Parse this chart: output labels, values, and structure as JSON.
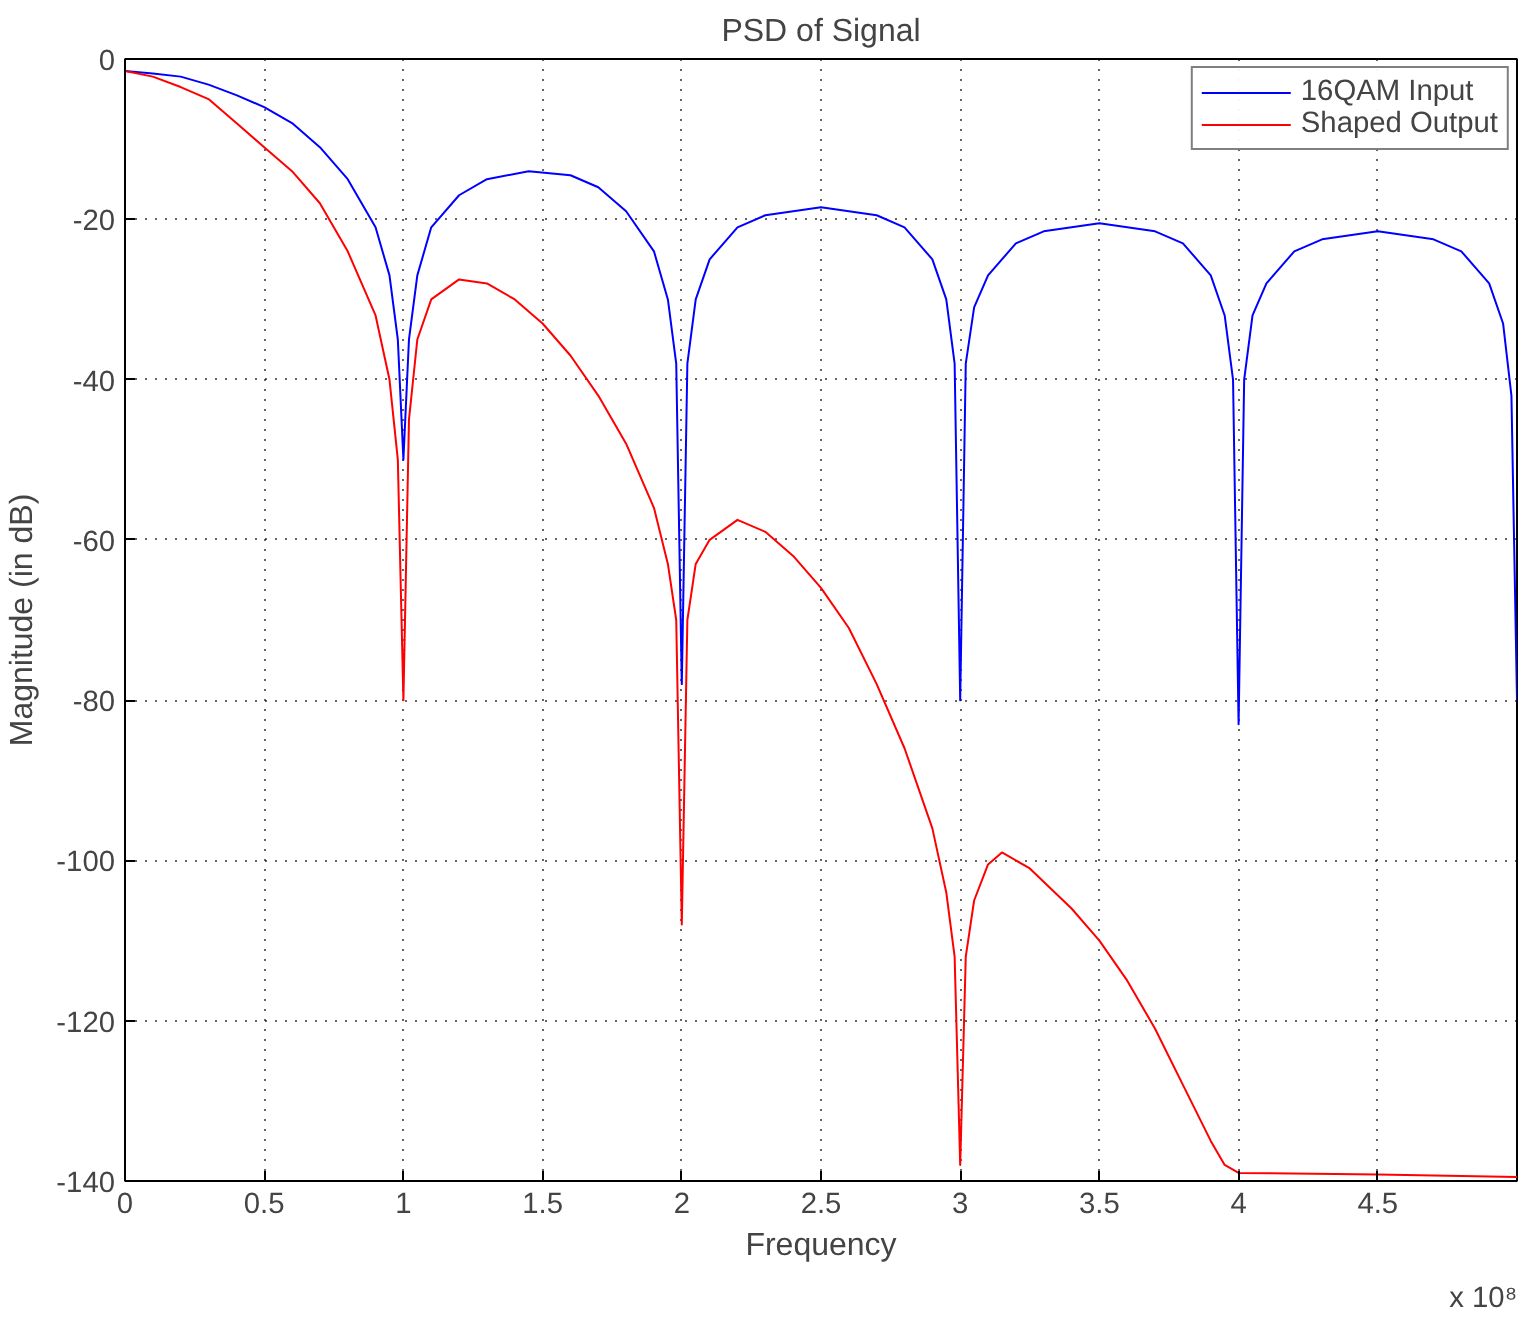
{
  "chart_data": {
    "type": "line",
    "title": "PSD of Signal",
    "xlabel": "Frequency",
    "ylabel": "Magnitude (in dB)",
    "annotations": [
      "x 10⁸"
    ],
    "xlim": [
      0,
      5
    ],
    "ylim": [
      -140,
      0
    ],
    "xticks": [
      0,
      0.5,
      1,
      1.5,
      2,
      2.5,
      3,
      3.5,
      4,
      4.5
    ],
    "yticks": [
      -140,
      -120,
      -100,
      -80,
      -60,
      -40,
      -20,
      0
    ],
    "grid": true,
    "legend": "top right",
    "marker": "none",
    "line_style": "solid",
    "series": [
      {
        "name": "16QAM Input",
        "color": "#0000ff",
        "x": [
          0,
          0.1,
          0.2,
          0.3,
          0.4,
          0.5,
          0.6,
          0.7,
          0.8,
          0.9,
          0.95,
          0.98,
          1.0,
          1.02,
          1.05,
          1.1,
          1.2,
          1.3,
          1.45,
          1.6,
          1.7,
          1.8,
          1.9,
          1.95,
          1.98,
          2.0,
          2.02,
          2.05,
          2.1,
          2.2,
          2.3,
          2.5,
          2.7,
          2.8,
          2.9,
          2.95,
          2.98,
          3.0,
          3.02,
          3.05,
          3.1,
          3.2,
          3.3,
          3.5,
          3.7,
          3.8,
          3.9,
          3.95,
          3.98,
          4.0,
          4.02,
          4.05,
          4.1,
          4.2,
          4.3,
          4.5,
          4.7,
          4.8,
          4.9,
          4.95,
          4.98,
          5.0
        ],
        "values": [
          -1.5,
          -1.8,
          -2.2,
          -3.2,
          -4.5,
          -6,
          -8,
          -11,
          -15,
          -21,
          -27,
          -35,
          -50,
          -35,
          -27,
          -21,
          -17,
          -15,
          -14,
          -14.5,
          -16,
          -19,
          -24,
          -30,
          -38,
          -78,
          -38,
          -30,
          -25,
          -21,
          -19.5,
          -18.5,
          -19.5,
          -21,
          -25,
          -30,
          -38,
          -80,
          -38,
          -31,
          -27,
          -23,
          -21.5,
          -20.5,
          -21.5,
          -23,
          -27,
          -32,
          -40,
          -83,
          -40,
          -32,
          -28,
          -24,
          -22.5,
          -21.5,
          -22.5,
          -24,
          -28,
          -33,
          -42,
          -80
        ]
      },
      {
        "name": "Shaped Output",
        "color": "#ff0000",
        "x": [
          0,
          0.1,
          0.2,
          0.3,
          0.4,
          0.5,
          0.6,
          0.7,
          0.8,
          0.9,
          0.95,
          0.98,
          1.0,
          1.02,
          1.05,
          1.1,
          1.2,
          1.3,
          1.4,
          1.5,
          1.6,
          1.7,
          1.8,
          1.9,
          1.95,
          1.98,
          2.0,
          2.02,
          2.05,
          2.1,
          2.2,
          2.3,
          2.4,
          2.5,
          2.6,
          2.7,
          2.8,
          2.9,
          2.95,
          2.98,
          3.0,
          3.02,
          3.05,
          3.1,
          3.15,
          3.25,
          3.4,
          3.5,
          3.6,
          3.7,
          3.8,
          3.9,
          3.95,
          4.0,
          4.5,
          5.0
        ],
        "values": [
          -1.5,
          -2.2,
          -3.5,
          -5,
          -8,
          -11,
          -14,
          -18,
          -24,
          -32,
          -40,
          -50,
          -80,
          -45,
          -35,
          -30,
          -27.5,
          -28,
          -30,
          -33,
          -37,
          -42,
          -48,
          -56,
          -63,
          -70,
          -108,
          -70,
          -63,
          -60,
          -57.5,
          -59,
          -62,
          -66,
          -71,
          -78,
          -86,
          -96,
          -104,
          -112,
          -138,
          -112,
          -105,
          -100.5,
          -99,
          -101,
          -106,
          -110,
          -115,
          -121,
          -128,
          -135,
          -138,
          -139,
          -139.2,
          -139.5
        ]
      }
    ]
  }
}
